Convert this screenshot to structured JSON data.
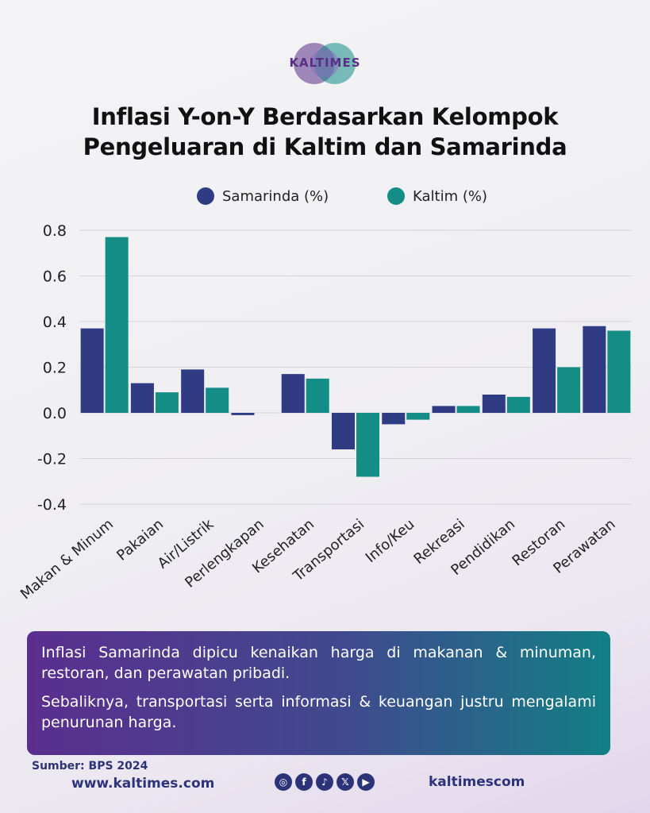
{
  "brand": {
    "logo_text": "KALTIMES"
  },
  "title_lines": [
    "Inflasi Y-on-Y Berdasarkan Kelompok",
    "Pengeluaran di Kaltim dan Samarinda"
  ],
  "colors": {
    "samarinda": "#2f3c84",
    "kaltim": "#138d85",
    "footer_text": "#2d3378"
  },
  "chart_data": {
    "type": "bar",
    "title": "Inflasi Y-on-Y Berdasarkan Kelompok Pengeluaran di Kaltim dan Samarinda",
    "categories": [
      "Makan & Minum",
      "Pakaian",
      "Air/Listrik",
      "Perlengkapan",
      "Kesehatan",
      "Transportasi",
      "Info/Keu",
      "Rekreasi",
      "Pendidikan",
      "Restoran",
      "Perawatan"
    ],
    "series": [
      {
        "name": "Samarinda (%)",
        "color": "#2f3c84",
        "values": [
          0.37,
          0.13,
          0.19,
          -0.01,
          0.17,
          -0.16,
          -0.05,
          0.03,
          0.08,
          0.37,
          0.38
        ]
      },
      {
        "name": "Kaltim (%)",
        "color": "#138d85",
        "values": [
          0.77,
          0.09,
          0.11,
          0.0,
          0.15,
          -0.28,
          -0.03,
          0.03,
          0.07,
          0.2,
          0.36
        ]
      }
    ],
    "yticks": [
      "0.8",
      "0.6",
      "0.4",
      "0.2",
      "0.0",
      "-0.2",
      "-0.4"
    ],
    "ylim": [
      -0.4,
      0.8
    ],
    "grid": true,
    "legend_position": "top-center"
  },
  "info": {
    "p1": "Inflasi Samarinda dipicu kenaikan harga di makanan & minuman, restoran, dan perawatan pribadi.",
    "p2": "Sebaliknya, transportasi serta informasi & keuangan justru mengalami penurunan harga."
  },
  "footer": {
    "source": "Sumber: BPS 2024",
    "website": "www.kaltimes.com",
    "handle": "kaltimescom",
    "social_icons": [
      "instagram-icon",
      "facebook-icon",
      "tiktok-icon",
      "x-icon",
      "youtube-icon"
    ]
  }
}
